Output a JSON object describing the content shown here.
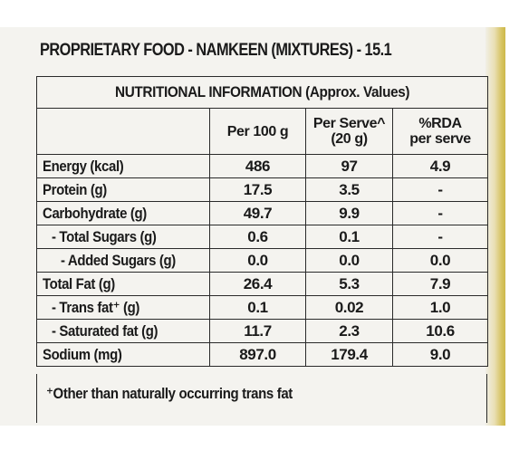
{
  "heading": "PROPRIETARY FOOD - NAMKEEN (MIXTURES) - 15.1",
  "table": {
    "title": "NUTRITIONAL INFORMATION (Approx. Values)",
    "columns": {
      "per_100g": "Per 100 g",
      "per_serve_line1": "Per Serve^",
      "per_serve_line2": "(20 g)",
      "rda_line1": "%RDA",
      "rda_line2": "per serve"
    },
    "rows": [
      {
        "name": "Energy (kcal)",
        "per_100g": "486",
        "per_serve": "97",
        "rda": "4.9"
      },
      {
        "name": "Protein (g)",
        "per_100g": "17.5",
        "per_serve": "3.5",
        "rda": "-"
      },
      {
        "name": "Carbohydrate (g)",
        "per_100g": "49.7",
        "per_serve": "9.9",
        "rda": "-"
      },
      {
        "name": "- Total Sugars (g)",
        "per_100g": "0.6",
        "per_serve": "0.1",
        "rda": "-"
      },
      {
        "name": "- Added Sugars (g)",
        "per_100g": "0.0",
        "per_serve": "0.0",
        "rda": "0.0"
      },
      {
        "name": "Total Fat (g)",
        "per_100g": "26.4",
        "per_serve": "5.3",
        "rda": "7.9"
      },
      {
        "name": "- Trans fat⁺ (g)",
        "per_100g": "0.1",
        "per_serve": "0.02",
        "rda": "1.0"
      },
      {
        "name": "- Saturated fat (g)",
        "per_100g": "11.7",
        "per_serve": "2.3",
        "rda": "10.6"
      },
      {
        "name": "Sodium (mg)",
        "per_100g": "897.0",
        "per_serve": "179.4",
        "rda": "9.0"
      }
    ]
  },
  "footnote": "⁺Other than naturally occurring trans fat"
}
